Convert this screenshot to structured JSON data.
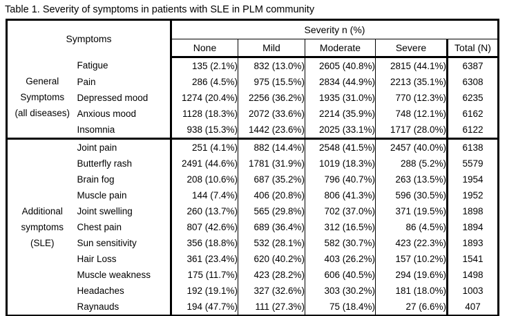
{
  "title": "Table 1. Severity of symptoms in patients with SLE in PLM community",
  "table": {
    "symptoms_header": "Symptoms",
    "severity_header": "Severity  n (%)",
    "columns": [
      "None",
      "Mild",
      "Moderate",
      "Severe",
      "Total (N)"
    ],
    "groups": [
      {
        "label_lines": [
          "General",
          "Symptoms",
          "(all diseases)"
        ],
        "rows": [
          {
            "symptom": "Fatigue",
            "none": "135 (2.1%)",
            "mild": "832 (13.0%)",
            "moderate": "2605 (40.8%)",
            "severe": "2815 (44.1%)",
            "total": "6387"
          },
          {
            "symptom": "Pain",
            "none": "286 (4.5%)",
            "mild": "975 (15.5%)",
            "moderate": "2834 (44.9%)",
            "severe": "2213 (35.1%)",
            "total": "6308"
          },
          {
            "symptom": "Depressed mood",
            "none": "1274 (20.4%)",
            "mild": "2256 (36.2%)",
            "moderate": "1935 (31.0%)",
            "severe": "770 (12.3%)",
            "total": "6235"
          },
          {
            "symptom": "Anxious mood",
            "none": "1128 (18.3%)",
            "mild": "2072 (33.6%)",
            "moderate": "2214 (35.9%)",
            "severe": "748 (12.1%)",
            "total": "6162"
          },
          {
            "symptom": "Insomnia",
            "none": "938 (15.3%)",
            "mild": "1442 (23.6%)",
            "moderate": "2025 (33.1%)",
            "severe": "1717 (28.0%)",
            "total": "6122"
          }
        ]
      },
      {
        "label_lines": [
          "Additional",
          "symptoms",
          "(SLE)"
        ],
        "rows": [
          {
            "symptom": "Joint pain",
            "none": "251 (4.1%)",
            "mild": "882 (14.4%)",
            "moderate": "2548 (41.5%)",
            "severe": "2457 (40.0%)",
            "total": "6138"
          },
          {
            "symptom": "Butterfly rash",
            "none": "2491 (44.6%)",
            "mild": "1781 (31.9%)",
            "moderate": "1019 (18.3%)",
            "severe": "288 (5.2%)",
            "total": "5579"
          },
          {
            "symptom": "Brain fog",
            "none": "208 (10.6%)",
            "mild": "687 (35.2%)",
            "moderate": "796 (40.7%)",
            "severe": "263 (13.5%)",
            "total": "1954"
          },
          {
            "symptom": "Muscle pain",
            "none": "144 (7.4%)",
            "mild": "406 (20.8%)",
            "moderate": "806 (41.3%)",
            "severe": "596 (30.5%)",
            "total": "1952"
          },
          {
            "symptom": "Joint swelling",
            "none": "260 (13.7%)",
            "mild": "565 (29.8%)",
            "moderate": "702 (37.0%)",
            "severe": "371 (19.5%)",
            "total": "1898"
          },
          {
            "symptom": "Chest pain",
            "none": "807 (42.6%)",
            "mild": "689 (36.4%)",
            "moderate": "312 (16.5%)",
            "severe": "86 (4.5%)",
            "total": "1894"
          },
          {
            "symptom": "Sun sensitivity",
            "none": "356 (18.8%)",
            "mild": "532 (28.1%)",
            "moderate": "582 (30.7%)",
            "severe": "423 (22.3%)",
            "total": "1893"
          },
          {
            "symptom": "Hair Loss",
            "none": "361 (23.4%)",
            "mild": "620 (40.2%)",
            "moderate": "403 (26.2%)",
            "severe": "157 (10.2%)",
            "total": "1541"
          },
          {
            "symptom": "Muscle weakness",
            "none": "175 (11.7%)",
            "mild": "423 (28.2%)",
            "moderate": "606 (40.5%)",
            "severe": "294 (19.6%)",
            "total": "1498"
          },
          {
            "symptom": "Headaches",
            "none": "192 (19.1%)",
            "mild": "327 (32.6%)",
            "moderate": "303 (30.2%)",
            "severe": "181 (18.0%)",
            "total": "1003"
          },
          {
            "symptom": "Raynauds",
            "none": "194 (47.7%)",
            "mild": "111 (27.3%)",
            "moderate": "75 (18.4%)",
            "severe": "27 (6.6%)",
            "total": "407"
          }
        ]
      }
    ]
  }
}
